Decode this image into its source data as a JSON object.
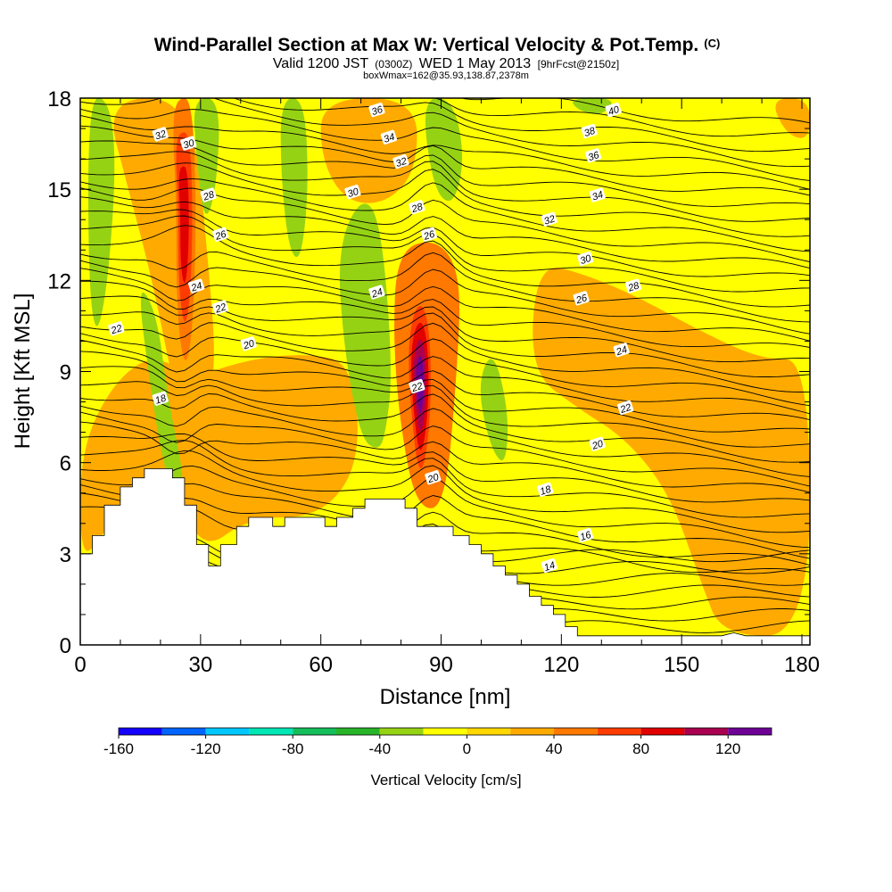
{
  "header": {
    "title_main": "Wind-Parallel Section at Max W: Vertical Velocity & Pot.Temp.",
    "title_mark": "(C)",
    "valid_a": "Valid 1200 JST",
    "valid_b": "(0300Z)",
    "valid_c": "WED 1 May 2013",
    "valid_d": "[9hrFcst@2150z]",
    "boxline": "boxWmax=162@35.93,138.87,2378m"
  },
  "chart_data": {
    "type": "heatmap",
    "xlabel": "Distance [nm]",
    "ylabel": "Height [Kft MSL]",
    "xlim": [
      0,
      182
    ],
    "ylim": [
      0,
      18
    ],
    "x_ticks": [
      "0",
      "30",
      "60",
      "90",
      "120",
      "150",
      "180"
    ],
    "x_tick_values": [
      0,
      30,
      60,
      90,
      120,
      150,
      180
    ],
    "y_ticks": [
      "0",
      "3",
      "6",
      "9",
      "12",
      "15",
      "18"
    ],
    "y_tick_values": [
      0,
      3,
      6,
      9,
      12,
      15,
      18
    ],
    "colorbar": {
      "label": "Vertical Velocity [cm/s]",
      "range": [
        -160,
        140
      ],
      "tick_labels": [
        "-160",
        "-120",
        "-80",
        "-40",
        "0",
        "40",
        "80",
        "120"
      ],
      "tick_values": [
        -160,
        -120,
        -80,
        -40,
        0,
        40,
        80,
        120
      ],
      "colors": [
        "#1400ff",
        "#0064ff",
        "#00c8ff",
        "#00e6b4",
        "#14be5a",
        "#28b428",
        "#96d214",
        "#ffff00",
        "#ffd700",
        "#ffaa00",
        "#ff7800",
        "#ff3c00",
        "#e10000",
        "#aa0050",
        "#6e0096"
      ]
    },
    "background_color": "#ffff00",
    "terrain_heights_kft": [
      [
        0,
        3.0
      ],
      [
        3,
        3.0
      ],
      [
        3,
        3.6
      ],
      [
        6,
        3.6
      ],
      [
        6,
        4.6
      ],
      [
        10,
        4.6
      ],
      [
        10,
        5.2
      ],
      [
        13,
        5.2
      ],
      [
        13,
        5.5
      ],
      [
        16,
        5.5
      ],
      [
        16,
        5.8
      ],
      [
        23,
        5.8
      ],
      [
        23,
        5.5
      ],
      [
        26,
        5.5
      ],
      [
        26,
        4.6
      ],
      [
        29,
        4.6
      ],
      [
        29,
        3.3
      ],
      [
        32,
        3.3
      ],
      [
        32,
        2.6
      ],
      [
        35,
        2.6
      ],
      [
        35,
        3.3
      ],
      [
        39,
        3.3
      ],
      [
        39,
        3.9
      ],
      [
        42,
        3.9
      ],
      [
        42,
        4.2
      ],
      [
        48,
        4.2
      ],
      [
        48,
        3.9
      ],
      [
        51,
        3.9
      ],
      [
        51,
        4.2
      ],
      [
        61,
        4.2
      ],
      [
        61,
        3.9
      ],
      [
        64,
        3.9
      ],
      [
        64,
        4.2
      ],
      [
        68,
        4.2
      ],
      [
        68,
        4.5
      ],
      [
        71,
        4.5
      ],
      [
        71,
        4.8
      ],
      [
        81,
        4.8
      ],
      [
        81,
        4.5
      ],
      [
        84,
        4.5
      ],
      [
        84,
        3.9
      ],
      [
        93,
        3.9
      ],
      [
        93,
        3.6
      ],
      [
        97,
        3.6
      ],
      [
        97,
        3.3
      ],
      [
        100,
        3.3
      ],
      [
        100,
        3.0
      ],
      [
        103,
        3.0
      ],
      [
        103,
        2.6
      ],
      [
        106,
        2.6
      ],
      [
        106,
        2.3
      ],
      [
        109,
        2.3
      ],
      [
        109,
        2.0
      ],
      [
        112,
        2.0
      ],
      [
        112,
        1.6
      ],
      [
        115,
        1.6
      ],
      [
        115,
        1.3
      ],
      [
        118,
        1.3
      ],
      [
        118,
        1.0
      ],
      [
        121,
        1.0
      ],
      [
        121,
        0.6
      ],
      [
        124,
        0.6
      ],
      [
        124,
        0.3
      ],
      [
        160,
        0.3
      ],
      [
        163,
        0.4
      ],
      [
        166,
        0.3
      ],
      [
        182,
        0.3
      ]
    ],
    "updraft_regions": [
      {
        "name": "eastern-updraft-plume",
        "w": 20,
        "points": [
          [
            114,
            12.6
          ],
          [
            126,
            12.2
          ],
          [
            140,
            11.4
          ],
          [
            155,
            10.3
          ],
          [
            170,
            9.4
          ],
          [
            182,
            9.4
          ],
          [
            182,
            0.3
          ],
          [
            160,
            0.3
          ],
          [
            155,
            2
          ],
          [
            147,
            5
          ],
          [
            136,
            6.8
          ],
          [
            124,
            7.8
          ],
          [
            112,
            9
          ]
        ]
      },
      {
        "name": "left-lower-updraft",
        "w": 20,
        "points": [
          [
            0,
            6.4
          ],
          [
            8,
            8.6
          ],
          [
            18,
            9.6
          ],
          [
            28,
            8.8
          ],
          [
            42,
            9.4
          ],
          [
            56,
            9.6
          ],
          [
            68,
            9.3
          ],
          [
            70,
            6
          ],
          [
            60,
            4.2
          ],
          [
            42,
            4.2
          ],
          [
            30,
            3.0
          ],
          [
            22,
            5.8
          ],
          [
            12,
            5.2
          ],
          [
            4,
            3.2
          ],
          [
            0,
            3.0
          ]
        ]
      },
      {
        "name": "central-updraft",
        "w": 40,
        "points": [
          [
            79,
            13.0
          ],
          [
            89,
            13.4
          ],
          [
            95,
            12.2
          ],
          [
            94,
            9.0
          ],
          [
            91,
            4.5
          ],
          [
            84,
            4.5
          ],
          [
            80,
            7
          ],
          [
            78,
            10
          ]
        ]
      },
      {
        "name": "upper-left-updraft",
        "w": 20,
        "points": [
          [
            6,
            18
          ],
          [
            28,
            18
          ],
          [
            32,
            12.5
          ],
          [
            34,
            9
          ],
          [
            30,
            7
          ],
          [
            24,
            8
          ],
          [
            18,
            12
          ],
          [
            12,
            15
          ]
        ]
      },
      {
        "name": "upper-middle-updraft",
        "w": 20,
        "points": [
          [
            60,
            18
          ],
          [
            84,
            18
          ],
          [
            84,
            15.6
          ],
          [
            76,
            14.5
          ],
          [
            66,
            14.6
          ],
          [
            60,
            16
          ]
        ]
      },
      {
        "name": "upper-right-updraft",
        "w": 20,
        "points": [
          [
            172,
            18
          ],
          [
            182,
            18
          ],
          [
            182,
            16.6
          ],
          [
            176,
            16.8
          ]
        ]
      }
    ],
    "updraft_cores": [
      {
        "name": "western-updraft-core",
        "w": 80,
        "points": [
          [
            24,
            18
          ],
          [
            28,
            18
          ],
          [
            29,
            14
          ],
          [
            28,
            10.2
          ],
          [
            26,
            9
          ],
          [
            24,
            11
          ],
          [
            24,
            14.5
          ],
          [
            23,
            17
          ]
        ]
      },
      {
        "name": "central-updraft-core",
        "w": 120,
        "points": [
          [
            83,
            11.6
          ],
          [
            86,
            11.8
          ],
          [
            88,
            10.2
          ],
          [
            88,
            7.4
          ],
          [
            86,
            5.2
          ],
          [
            84,
            5.2
          ],
          [
            82,
            7.5
          ],
          [
            81,
            10
          ]
        ]
      }
    ],
    "downdraft_regions": [
      {
        "name": "upper-left-downdraft",
        "w": -40,
        "points": [
          [
            2,
            18
          ],
          [
            7,
            18
          ],
          [
            9,
            16
          ],
          [
            7,
            12
          ],
          [
            4,
            10
          ],
          [
            2,
            12
          ]
        ]
      },
      {
        "name": "western-downdraft-column",
        "w": -40,
        "points": [
          [
            14,
            12
          ],
          [
            19,
            11
          ],
          [
            22,
            8
          ],
          [
            26,
            5.5
          ],
          [
            25,
            4.0
          ],
          [
            21,
            5.8
          ],
          [
            18,
            8
          ]
        ]
      },
      {
        "name": "upper-western-downdraft",
        "w": -40,
        "points": [
          [
            28,
            18
          ],
          [
            35,
            18
          ],
          [
            34,
            15
          ],
          [
            31,
            13.8
          ],
          [
            29,
            16
          ]
        ]
      },
      {
        "name": "upper-mid-downdraft-1",
        "w": -40,
        "points": [
          [
            50,
            18
          ],
          [
            56,
            18
          ],
          [
            57,
            15
          ],
          [
            55,
            12.6
          ],
          [
            52,
            13
          ],
          [
            50,
            15.5
          ]
        ]
      },
      {
        "name": "mid-downdraft-column",
        "w": -40,
        "points": [
          [
            64,
            13
          ],
          [
            70,
            14.8
          ],
          [
            75,
            14
          ],
          [
            78,
            9
          ],
          [
            76,
            6.8
          ],
          [
            74,
            6.4
          ],
          [
            70,
            6.8
          ],
          [
            66,
            9.5
          ]
        ]
      },
      {
        "name": "upper-mid-downdraft-2",
        "w": -40,
        "points": [
          [
            85,
            18
          ],
          [
            93,
            18
          ],
          [
            96,
            16
          ],
          [
            93,
            14.4
          ],
          [
            88,
            15
          ]
        ]
      },
      {
        "name": "lower-mid-downdraft",
        "w": -40,
        "points": [
          [
            99,
            8.6
          ],
          [
            103,
            9.8
          ],
          [
            107,
            7.6
          ],
          [
            106,
            5.8
          ],
          [
            102,
            6.6
          ]
        ]
      },
      {
        "name": "upper-right-downdraft",
        "w": -40,
        "points": [
          [
            122,
            18
          ],
          [
            134,
            18
          ],
          [
            130,
            17.4
          ],
          [
            124,
            17.6
          ]
        ]
      }
    ],
    "potential_temperature_labels": [
      {
        "text": "36",
        "x": 74,
        "y": 17.6
      },
      {
        "text": "34",
        "x": 77,
        "y": 16.7
      },
      {
        "text": "32",
        "x": 80,
        "y": 15.9
      },
      {
        "text": "30",
        "x": 68,
        "y": 14.9
      },
      {
        "text": "28",
        "x": 84,
        "y": 14.4
      },
      {
        "text": "26",
        "x": 87,
        "y": 13.5
      },
      {
        "text": "24",
        "x": 74,
        "y": 11.6
      },
      {
        "text": "22",
        "x": 84,
        "y": 8.5
      },
      {
        "text": "20",
        "x": 88,
        "y": 5.5
      },
      {
        "text": "32",
        "x": 20,
        "y": 16.8
      },
      {
        "text": "30",
        "x": 27,
        "y": 16.5
      },
      {
        "text": "28",
        "x": 32,
        "y": 14.8
      },
      {
        "text": "26",
        "x": 35,
        "y": 13.5
      },
      {
        "text": "24",
        "x": 29,
        "y": 11.8
      },
      {
        "text": "22",
        "x": 35,
        "y": 11.1
      },
      {
        "text": "20",
        "x": 42,
        "y": 9.9
      },
      {
        "text": "22",
        "x": 9,
        "y": 10.4
      },
      {
        "text": "18",
        "x": 20,
        "y": 8.1
      },
      {
        "text": "40",
        "x": 133,
        "y": 17.6
      },
      {
        "text": "38",
        "x": 127,
        "y": 16.9
      },
      {
        "text": "36",
        "x": 128,
        "y": 16.1
      },
      {
        "text": "34",
        "x": 129,
        "y": 14.8
      },
      {
        "text": "32",
        "x": 117,
        "y": 14.0
      },
      {
        "text": "30",
        "x": 126,
        "y": 12.7
      },
      {
        "text": "28",
        "x": 138,
        "y": 11.8
      },
      {
        "text": "26",
        "x": 125,
        "y": 11.4
      },
      {
        "text": "24",
        "x": 135,
        "y": 9.7
      },
      {
        "text": "22",
        "x": 136,
        "y": 7.8
      },
      {
        "text": "20",
        "x": 129,
        "y": 6.6
      },
      {
        "text": "18",
        "x": 116,
        "y": 5.1
      },
      {
        "text": "16",
        "x": 126,
        "y": 3.6
      },
      {
        "text": "14",
        "x": 117,
        "y": 2.6
      }
    ]
  }
}
